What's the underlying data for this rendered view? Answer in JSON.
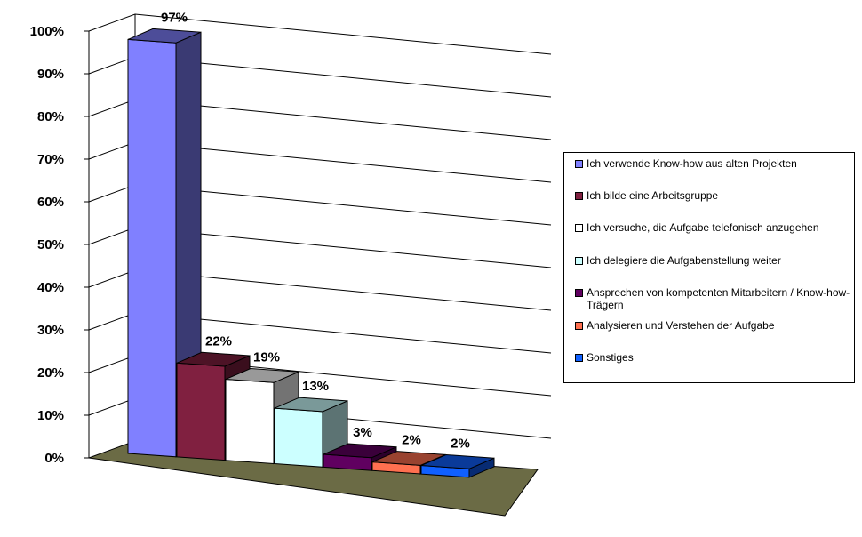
{
  "chart_data": {
    "type": "bar",
    "style": "3d-column",
    "categories": [
      "Ich verwende Know-how aus alten Projekten",
      "Ich bilde eine Arbeitsgruppe",
      "Ich versuche, die Aufgabe telefonisch anzugehen",
      "Ich delegiere die Aufgabenstellung weiter",
      "Ansprechen von kompetenten Mitarbeitern / Know-how-Trägern",
      "Analysieren und Verstehen der Aufgabe",
      "Sonstiges"
    ],
    "values": [
      97,
      22,
      19,
      13,
      3,
      2,
      2
    ],
    "data_labels": [
      "97%",
      "22%",
      "19%",
      "13%",
      "3%",
      "2%",
      "2%"
    ],
    "colors": [
      "#8080ff",
      "#802040",
      "#ffffff",
      "#ccffff",
      "#600060",
      "#ff7050",
      "#1060ff"
    ],
    "y_ticks": [
      "0%",
      "10%",
      "20%",
      "30%",
      "40%",
      "50%",
      "60%",
      "70%",
      "80%",
      "90%",
      "100%"
    ],
    "ylim": [
      0,
      100
    ],
    "grid": true,
    "legend_position": "right",
    "floor_color": "#6b6b45"
  },
  "legend": {
    "items": [
      {
        "label": "Ich verwende Know-how aus alten Projekten",
        "color": "#8080ff"
      },
      {
        "label": "Ich bilde eine Arbeitsgruppe",
        "color": "#802040"
      },
      {
        "label": "Ich versuche, die Aufgabe telefonisch anzugehen",
        "color": "#ffffff"
      },
      {
        "label": "Ich delegiere die Aufgabenstellung weiter",
        "color": "#ccffff"
      },
      {
        "label": "Ansprechen von kompetenten Mitarbeitern / Know-how-Trägern",
        "color": "#600060"
      },
      {
        "label": "Analysieren und Verstehen der Aufgabe",
        "color": "#ff7050"
      },
      {
        "label": "Sonstiges",
        "color": "#1060ff"
      }
    ]
  }
}
